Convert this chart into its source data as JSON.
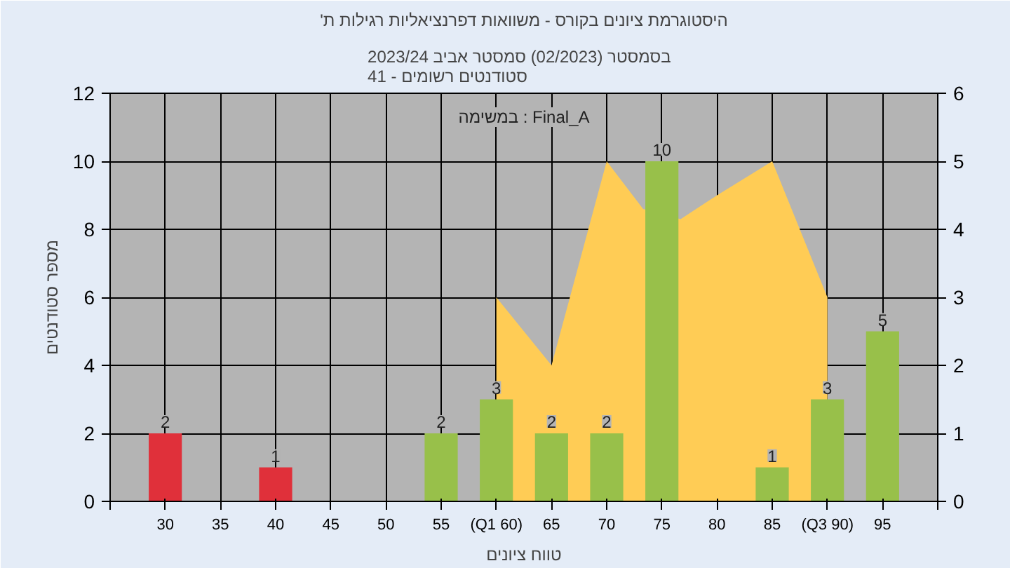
{
  "chart_data": {
    "type": "bar",
    "title": "'היסטוגרמת ציונים בקורס - משוואות דפרנציאליות רגילות ת",
    "subtitle": "בסמסטר  (02/2023)  סמסטר אביב 2023/24\nסטודנטים רשומים - 41",
    "xlabel": "טווח ציונים",
    "ylabel": "מספר סטודנטים",
    "annotations": [
      "במשימה : Final_A"
    ],
    "x": [
      30,
      40,
      55,
      60,
      65,
      70,
      75,
      85,
      90,
      95
    ],
    "series": [
      {
        "type": "area",
        "axis": "y2",
        "color": "#ffcc55",
        "x": [
          60,
          65,
          70,
          73.3,
          76.7,
          80,
          85,
          90
        ],
        "values": [
          3,
          2,
          5,
          4.3,
          4.15,
          4.5,
          5,
          3
        ]
      },
      {
        "colors": [
          "#e0303a",
          "#e0303a",
          "#98c04a",
          "#98c04a",
          "#98c04a",
          "#98c04a",
          "#98c04a",
          "#98c04a",
          "#98c04a",
          "#98c04a"
        ],
        "values": [
          2,
          1,
          2,
          3,
          2,
          2,
          10,
          1,
          3,
          5
        ],
        "value_labels": [
          "2",
          "1",
          "2",
          "3",
          "2",
          "2",
          "10",
          "1",
          "3",
          "5"
        ]
      }
    ],
    "xlim": [
      25,
      100
    ],
    "xticks": [
      {
        "value": 25,
        "label": null
      },
      30,
      35,
      40,
      45,
      50,
      55,
      {
        "value": 60,
        "label": "(Q1 60)"
      },
      65,
      70,
      75,
      80,
      85,
      {
        "value": 90,
        "label": "(Q3 90)"
      },
      95,
      {
        "value": 100,
        "label": null
      }
    ],
    "ylim": [
      0,
      12
    ],
    "yticks": [
      0,
      2,
      4,
      6,
      8,
      10,
      12
    ],
    "y2lim": [
      0,
      6
    ],
    "y2ticks": [
      0,
      1,
      2,
      3,
      4,
      5,
      6
    ],
    "grid": true
  }
}
